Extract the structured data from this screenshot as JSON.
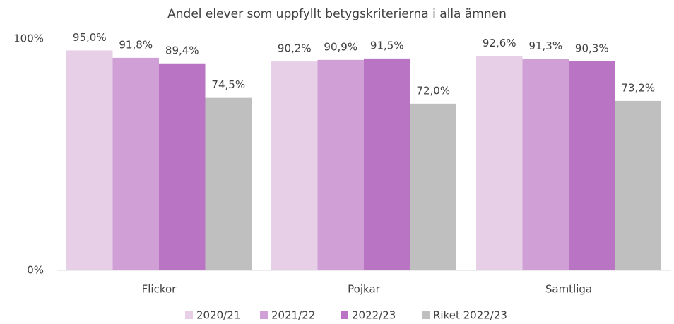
{
  "chart_data": {
    "type": "bar",
    "title": "Andel elever som uppfyllt betygskriterierna i alla ämnen",
    "categories": [
      "Flickor",
      "Pojkar",
      "Samtliga"
    ],
    "series": [
      {
        "name": "2020/21",
        "color": "#e8cfe8",
        "values": [
          95.0,
          90.2,
          92.6
        ],
        "value_labels": [
          "95,0%",
          "90,2%",
          "92,6%"
        ]
      },
      {
        "name": "2021/22",
        "color": "#cf9fd6",
        "values": [
          91.8,
          90.9,
          91.3
        ],
        "value_labels": [
          "91,8%",
          "90,9%",
          "91,3%"
        ]
      },
      {
        "name": "2022/23",
        "color": "#b974c4",
        "values": [
          89.4,
          91.5,
          90.3
        ],
        "value_labels": [
          "89,4%",
          "91,5%",
          "90,3%"
        ]
      },
      {
        "name": "Riket 2022/23",
        "color": "#bfbfbf",
        "values": [
          74.5,
          72.0,
          73.2
        ],
        "value_labels": [
          "74,5%",
          "72,0%",
          "73,2%"
        ]
      }
    ],
    "ylim": [
      0,
      100
    ],
    "yticks": [
      {
        "value": 0,
        "label": "0%"
      },
      {
        "value": 100,
        "label": "100%"
      }
    ],
    "grid": false,
    "legend": "bottom"
  }
}
